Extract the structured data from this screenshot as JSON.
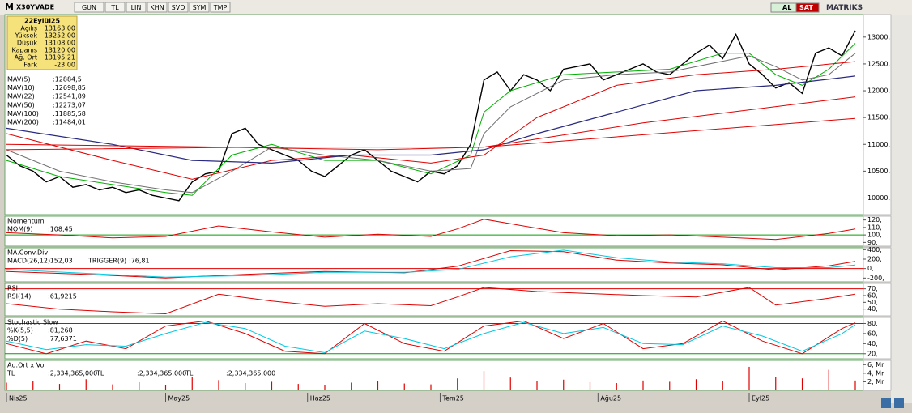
{
  "toolbar": {
    "logo": "M",
    "symbol": "X30YVADE",
    "buttons": [
      "GUN",
      "TL",
      "LIN",
      "KHN",
      "SVD",
      "SYM",
      "TMP"
    ],
    "buy": "AL",
    "sell": "SAT",
    "brand": "MATRIKS"
  },
  "info": {
    "date": "22Eylül25",
    "rows": [
      [
        "Açılış",
        "13163,00"
      ],
      [
        "Yüksek",
        "13252,00"
      ],
      [
        "Düşük",
        "13108,00"
      ],
      [
        "Kapanış",
        "13120,00"
      ],
      [
        "Ağ. Ort",
        "13195,21"
      ],
      [
        "Fark",
        "-23,00"
      ]
    ]
  },
  "chart_data": [
    {
      "type": "line",
      "xlim": [
        0,
        64
      ],
      "ylim": [
        9690,
        13420
      ],
      "yticks": [
        {
          "value": 13000,
          "label": "13000,"
        },
        {
          "value": 12500,
          "label": "12500,"
        },
        {
          "value": 12000,
          "label": "12000,"
        },
        {
          "value": 11500,
          "label": "11500,"
        },
        {
          "value": 11000,
          "label": "11000,"
        },
        {
          "value": 10500,
          "label": "10500,"
        },
        {
          "value": 10000,
          "label": "10000,"
        }
      ],
      "xticks": [
        {
          "value": 0,
          "label": "Nis25"
        },
        {
          "value": 12,
          "label": "May25"
        },
        {
          "value": 22.7,
          "label": "Haz25"
        },
        {
          "value": 32.7,
          "label": "Tem25"
        },
        {
          "value": 44.6,
          "label": "Ağu25"
        },
        {
          "value": 56,
          "label": "Eyl25"
        }
      ],
      "legend": [
        {
          "name": "MAV(5)",
          "value_label": ":12884,5",
          "color": "#00b000"
        },
        {
          "name": "MAV(10)",
          "value_label": ":12698,85",
          "color": "#505050"
        },
        {
          "name": "MAV(22)",
          "value_label": ":12541,89",
          "color": "#e00000"
        },
        {
          "name": "MAV(50)",
          "value_label": ":12273,07",
          "color": "#2a2a80"
        },
        {
          "name": "MAV(100)",
          "value_label": ":11885,58",
          "color": "#e00000"
        },
        {
          "name": "MAV(200)",
          "value_label": ":11484,01",
          "color": "#e00000"
        }
      ],
      "series": [
        {
          "color": "#000000",
          "width": 1.4,
          "x": [
            0,
            1,
            2,
            3,
            4,
            5,
            6,
            7,
            8,
            9,
            10,
            11,
            12,
            13,
            14,
            15,
            16,
            17,
            18,
            19,
            20,
            21,
            22,
            23,
            24,
            25,
            26,
            27,
            28,
            29,
            30,
            31,
            32,
            33,
            34,
            35,
            36,
            37,
            38,
            39,
            40,
            41,
            42,
            43,
            44,
            45,
            46,
            47,
            48,
            49,
            50,
            51,
            52,
            53,
            54,
            55,
            56,
            57,
            58,
            59,
            60,
            61,
            62,
            63,
            64
          ],
          "values": [
            10800,
            10600,
            10500,
            10300,
            10400,
            10200,
            10250,
            10150,
            10200,
            10100,
            10150,
            10050,
            10000,
            9950,
            10300,
            10450,
            10500,
            11200,
            11300,
            11000,
            10900,
            10800,
            10700,
            10500,
            10400,
            10600,
            10800,
            10900,
            10700,
            10500,
            10400,
            10300,
            10500,
            10450,
            10600,
            11000,
            12200,
            12350,
            12000,
            12300,
            12200,
            12000,
            12400,
            12450,
            12500,
            12200,
            12300,
            12400,
            12500,
            12350,
            12300,
            12500,
            12700,
            12850,
            12600,
            13050,
            12500,
            12300,
            12050,
            12150,
            11950,
            12700,
            12800,
            12650,
            13120
          ]
        },
        {
          "color": "#00b000",
          "width": 1,
          "x": [
            0,
            4,
            8,
            12,
            14,
            17,
            20,
            24,
            28,
            32,
            35,
            36,
            38,
            42,
            46,
            50,
            54,
            56,
            58,
            60,
            62,
            64
          ],
          "values": [
            10700,
            10400,
            10250,
            10100,
            10050,
            10800,
            11000,
            10700,
            10700,
            10450,
            10800,
            11600,
            12000,
            12300,
            12350,
            12400,
            12700,
            12700,
            12300,
            12100,
            12400,
            12884.5
          ]
        },
        {
          "color": "#707070",
          "width": 1,
          "x": [
            0,
            4,
            8,
            12,
            14,
            17,
            20,
            24,
            28,
            32,
            35,
            36,
            38,
            42,
            46,
            50,
            54,
            56,
            58,
            60,
            62,
            64
          ],
          "values": [
            10900,
            10500,
            10300,
            10150,
            10100,
            10500,
            10950,
            10800,
            10700,
            10500,
            10550,
            11200,
            11700,
            12200,
            12300,
            12350,
            12550,
            12650,
            12450,
            12200,
            12300,
            12698.85
          ]
        },
        {
          "color": "#e00000",
          "width": 1,
          "x": [
            0,
            8,
            14,
            20,
            26,
            32,
            36,
            40,
            46,
            52,
            58,
            64
          ],
          "values": [
            11200,
            10700,
            10350,
            10700,
            10800,
            10650,
            10800,
            11500,
            12100,
            12300,
            12400,
            12541.89
          ]
        },
        {
          "color": "#2a2a80",
          "width": 1.2,
          "x": [
            0,
            8,
            14,
            20,
            26,
            32,
            36,
            40,
            46,
            52,
            58,
            64
          ],
          "values": [
            11300,
            11000,
            10700,
            10650,
            10800,
            10800,
            10900,
            11200,
            11600,
            12000,
            12100,
            12273.07
          ]
        },
        {
          "color": "#e00000",
          "width": 1,
          "x": [
            0,
            16,
            28,
            36,
            48,
            64
          ],
          "values": [
            11000,
            10950,
            10900,
            10950,
            11400,
            11885.58
          ]
        },
        {
          "color": "#e00000",
          "width": 1,
          "x": [
            0,
            20,
            36,
            64
          ],
          "values": [
            10900,
            10950,
            10950,
            11484.01
          ]
        }
      ]
    },
    {
      "type": "line",
      "title": "Momentum",
      "xlim": [
        0,
        64
      ],
      "ylim": [
        85,
        125
      ],
      "yticks": [
        {
          "value": 120,
          "label": "120,"
        },
        {
          "value": 110,
          "label": "110,"
        },
        {
          "value": 100,
          "label": "100,"
        },
        {
          "value": 90,
          "label": "90,"
        }
      ],
      "references": [
        {
          "value": 100,
          "color": "#00a000"
        }
      ],
      "legend": [
        {
          "name": "MOM(9)",
          "value_label": ":108,45",
          "color": "#e00000"
        }
      ],
      "series": [
        {
          "color": "#e00000",
          "width": 1,
          "x": [
            0,
            4,
            8,
            12,
            16,
            20,
            24,
            28,
            32,
            34,
            36,
            38,
            42,
            46,
            50,
            54,
            58,
            62,
            64
          ],
          "values": [
            103,
            100,
            96,
            98,
            112,
            104,
            97,
            101,
            98,
            108,
            121,
            115,
            103,
            99,
            100,
            97,
            94,
            102,
            108
          ]
        }
      ]
    },
    {
      "type": "line",
      "title": "MA.Conv.Div",
      "xlim": [
        0,
        64
      ],
      "ylim": [
        -280,
        440
      ],
      "inline": true,
      "yticks": [
        {
          "value": 400,
          "label": "400,"
        },
        {
          "value": 200,
          "label": "200,"
        },
        {
          "value": 0,
          "label": "0,"
        },
        {
          "value": -200,
          "label": "-200,"
        }
      ],
      "references": [
        {
          "value": 0,
          "color": "#e00000"
        }
      ],
      "legend": [
        {
          "name": "MACD(26,12)",
          "value_label": ":152,03",
          "color": "#e00000"
        },
        {
          "name": "TRIGGER(9)",
          "value_label": ":76,81",
          "color": "#00c8e0"
        }
      ],
      "series": [
        {
          "color": "#e00000",
          "width": 1,
          "x": [
            0,
            6,
            12,
            18,
            24,
            30,
            34,
            38,
            42,
            46,
            50,
            54,
            58,
            62,
            64
          ],
          "values": [
            -60,
            -120,
            -200,
            -120,
            -60,
            -90,
            50,
            380,
            360,
            180,
            120,
            80,
            -30,
            60,
            152
          ]
        },
        {
          "color": "#00c8e0",
          "width": 1,
          "x": [
            0,
            6,
            12,
            18,
            24,
            30,
            34,
            38,
            42,
            46,
            50,
            54,
            58,
            62,
            64
          ],
          "values": [
            -20,
            -100,
            -180,
            -150,
            -80,
            -80,
            -20,
            250,
            390,
            230,
            140,
            100,
            20,
            20,
            77
          ]
        }
      ]
    },
    {
      "type": "line",
      "title": "RSI",
      "xlim": [
        0,
        64
      ],
      "ylim": [
        30,
        78
      ],
      "yticks": [
        {
          "value": 70,
          "label": "70,"
        },
        {
          "value": 60,
          "label": "60,"
        },
        {
          "value": 50,
          "label": "50,"
        },
        {
          "value": 40,
          "label": "40,"
        }
      ],
      "references": [
        {
          "value": 70,
          "color": "#e00000"
        }
      ],
      "legend": [
        {
          "name": "RSI(14)",
          "value_label": ":61,9215",
          "color": "#e00000"
        }
      ],
      "series": [
        {
          "color": "#e00000",
          "width": 1,
          "x": [
            0,
            4,
            8,
            12,
            16,
            20,
            24,
            28,
            32,
            34,
            36,
            40,
            44,
            48,
            52,
            56,
            58,
            62,
            64
          ],
          "values": [
            48,
            40,
            36,
            33,
            62,
            52,
            44,
            48,
            45,
            58,
            72,
            66,
            63,
            60,
            58,
            72,
            46,
            56,
            62
          ]
        }
      ]
    },
    {
      "type": "line",
      "title": "Stochastic Slow",
      "xlim": [
        0,
        64
      ],
      "ylim": [
        10,
        92
      ],
      "yticks": [
        {
          "value": 80,
          "label": "80,"
        },
        {
          "value": 60,
          "label": "60,"
        },
        {
          "value": 40,
          "label": "40,"
        },
        {
          "value": 20,
          "label": "20,"
        }
      ],
      "references": [
        {
          "value": 80,
          "color": "#e00000"
        },
        {
          "value": 20,
          "color": "#00a000"
        }
      ],
      "legend": [
        {
          "name": "%K(5,5)",
          "value_label": ":81,268",
          "color": "#e00000"
        },
        {
          "name": "%D(5)",
          "value_label": ":77,6371",
          "color": "#00c8e0"
        }
      ],
      "series": [
        {
          "color": "#e00000",
          "width": 1,
          "x": [
            0,
            3,
            6,
            9,
            12,
            15,
            18,
            21,
            24,
            27,
            30,
            33,
            36,
            39,
            42,
            45,
            48,
            51,
            54,
            57,
            60,
            63,
            64
          ],
          "values": [
            40,
            20,
            45,
            30,
            75,
            85,
            60,
            25,
            20,
            80,
            40,
            25,
            75,
            85,
            50,
            80,
            30,
            40,
            85,
            45,
            20,
            70,
            81.268
          ]
        },
        {
          "color": "#00c8e0",
          "width": 1,
          "x": [
            0,
            3,
            6,
            9,
            12,
            15,
            18,
            21,
            24,
            27,
            30,
            33,
            36,
            39,
            42,
            45,
            48,
            51,
            54,
            57,
            60,
            63,
            64
          ],
          "values": [
            45,
            28,
            38,
            35,
            60,
            82,
            70,
            35,
            22,
            65,
            50,
            30,
            60,
            82,
            60,
            72,
            40,
            38,
            75,
            55,
            25,
            60,
            77.6371
          ]
        }
      ]
    },
    {
      "type": "bar",
      "title": "Ag.Ort x Vol",
      "xlim": [
        0,
        64
      ],
      "ylim": [
        0,
        7
      ],
      "inline": true,
      "yticks": [
        {
          "value": 6,
          "label": "6, Mr"
        },
        {
          "value": 4,
          "label": "4, Mr"
        },
        {
          "value": 2,
          "label": "2, Mr"
        }
      ],
      "legend": [
        {
          "name": "TL",
          "value_label": ":2,334,365,000",
          "color": "#e00000"
        },
        {
          "name": "TL",
          "value_label": ":2,334,365,000",
          "color": "#e00000"
        },
        {
          "name": "TL",
          "value_label": ":2,334,365,000",
          "color": "#e00000"
        }
      ],
      "series": [
        {
          "color": "#e00000",
          "x": [
            0,
            2,
            4,
            6,
            8,
            10,
            12,
            14,
            16,
            18,
            20,
            22,
            24,
            26,
            28,
            30,
            32,
            34,
            36,
            38,
            40,
            42,
            44,
            46,
            48,
            50,
            52,
            54,
            56,
            58,
            60,
            62,
            64
          ],
          "values": [
            1.8,
            2.2,
            1.5,
            2.6,
            1.4,
            1.9,
            1.2,
            3.1,
            2.4,
            1.7,
            2.0,
            1.5,
            1.3,
            1.8,
            2.2,
            1.6,
            1.4,
            2.8,
            4.5,
            3.0,
            2.1,
            2.5,
            1.9,
            1.7,
            2.3,
            2.0,
            2.6,
            2.2,
            5.5,
            3.2,
            2.8,
            4.8,
            2.3
          ]
        }
      ]
    }
  ]
}
